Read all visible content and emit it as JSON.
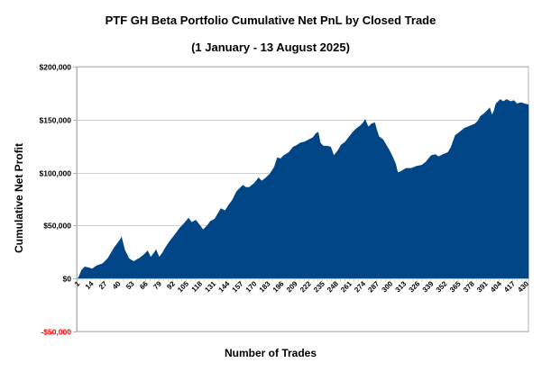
{
  "chart_data": {
    "type": "area",
    "title": "PTF GH Beta Portfolio Cumulative Net PnL by Closed Trade",
    "subtitle": "(1 January - 13 August 2025)",
    "xlabel": "Number of Trades",
    "ylabel": "Cumulative Net Profit",
    "xlim": [
      1,
      432
    ],
    "ylim": [
      -50000,
      200000
    ],
    "grid": true,
    "legend": "none",
    "fill_color": "#004586",
    "negative_tick_color": "#ff0000",
    "y_ticks": [
      {
        "value": 200000,
        "label": "$200,000"
      },
      {
        "value": 150000,
        "label": "$150,000"
      },
      {
        "value": 100000,
        "label": "$100,000"
      },
      {
        "value": 50000,
        "label": "$50,000"
      },
      {
        "value": 0,
        "label": "$0"
      },
      {
        "value": -50000,
        "label": "-$50,000"
      }
    ],
    "x_tick_labels": [
      "1",
      "14",
      "27",
      "40",
      "53",
      "66",
      "79",
      "92",
      "105",
      "118",
      "131",
      "144",
      "157",
      "170",
      "183",
      "196",
      "209",
      "222",
      "235",
      "248",
      "261",
      "274",
      "287",
      "300",
      "313",
      "326",
      "339",
      "352",
      "365",
      "378",
      "391",
      "404",
      "417",
      "430"
    ],
    "series": [
      {
        "name": "Cumulative Net Profit",
        "x": [
          1,
          2,
          5,
          8,
          12,
          15,
          19,
          22,
          25,
          28,
          30,
          33,
          36,
          39,
          42,
          43,
          46,
          49,
          50,
          53,
          55,
          58,
          60,
          64,
          68,
          71,
          74,
          76,
          79,
          82,
          85,
          89,
          93,
          96,
          99,
          103,
          107,
          110,
          114,
          118,
          121,
          125,
          128,
          132,
          135,
          138,
          142,
          146,
          149,
          153,
          156,
          159,
          162,
          165,
          170,
          174,
          177,
          181,
          185,
          189,
          192,
          195,
          198,
          203,
          207,
          211,
          214,
          218,
          222,
          226,
          229,
          231,
          233,
          236,
          240,
          243,
          246,
          250,
          253,
          257,
          260,
          264,
          267,
          271,
          274,
          276,
          278,
          279,
          282,
          285,
          287,
          289,
          293,
          296,
          299,
          302,
          305,
          307,
          310,
          315,
          320,
          325,
          330,
          334,
          339,
          343,
          346,
          350,
          355,
          358,
          362,
          366,
          371,
          376,
          381,
          384,
          386,
          390,
          393,
          395,
          397,
          399,
          401,
          403,
          405,
          408,
          411,
          415,
          418,
          421,
          425,
          428,
          432
        ],
        "values": [
          0,
          1000,
          8000,
          11000,
          10000,
          9000,
          12000,
          13000,
          14000,
          17000,
          19000,
          24000,
          29000,
          33000,
          37000,
          39000,
          27000,
          21000,
          19000,
          17000,
          16000,
          18000,
          19000,
          22000,
          26000,
          20000,
          24000,
          27000,
          20000,
          24000,
          29000,
          35000,
          40000,
          44000,
          48000,
          52000,
          57000,
          53000,
          55000,
          50000,
          46000,
          50000,
          54000,
          56000,
          61000,
          66000,
          64000,
          70000,
          74000,
          82000,
          85000,
          88000,
          86000,
          86000,
          90000,
          95000,
          92000,
          95000,
          99000,
          105000,
          114000,
          113000,
          116000,
          119000,
          124000,
          126000,
          128000,
          129000,
          131000,
          133000,
          137000,
          138000,
          128000,
          125000,
          125000,
          124000,
          116000,
          121000,
          126000,
          129000,
          133000,
          138000,
          141000,
          144000,
          147000,
          150000,
          145000,
          143000,
          146000,
          147000,
          140000,
          134000,
          131000,
          126000,
          121000,
          115000,
          108000,
          100000,
          101000,
          104000,
          104000,
          106000,
          107000,
          110000,
          116000,
          117000,
          115000,
          117000,
          119000,
          124000,
          135000,
          138000,
          142000,
          144000,
          146000,
          149000,
          153000,
          156000,
          159000,
          161000,
          154000,
          158000,
          165000,
          167000,
          169000,
          167000,
          169000,
          167000,
          168000,
          165000,
          166000,
          165000,
          164000
        ]
      }
    ]
  }
}
